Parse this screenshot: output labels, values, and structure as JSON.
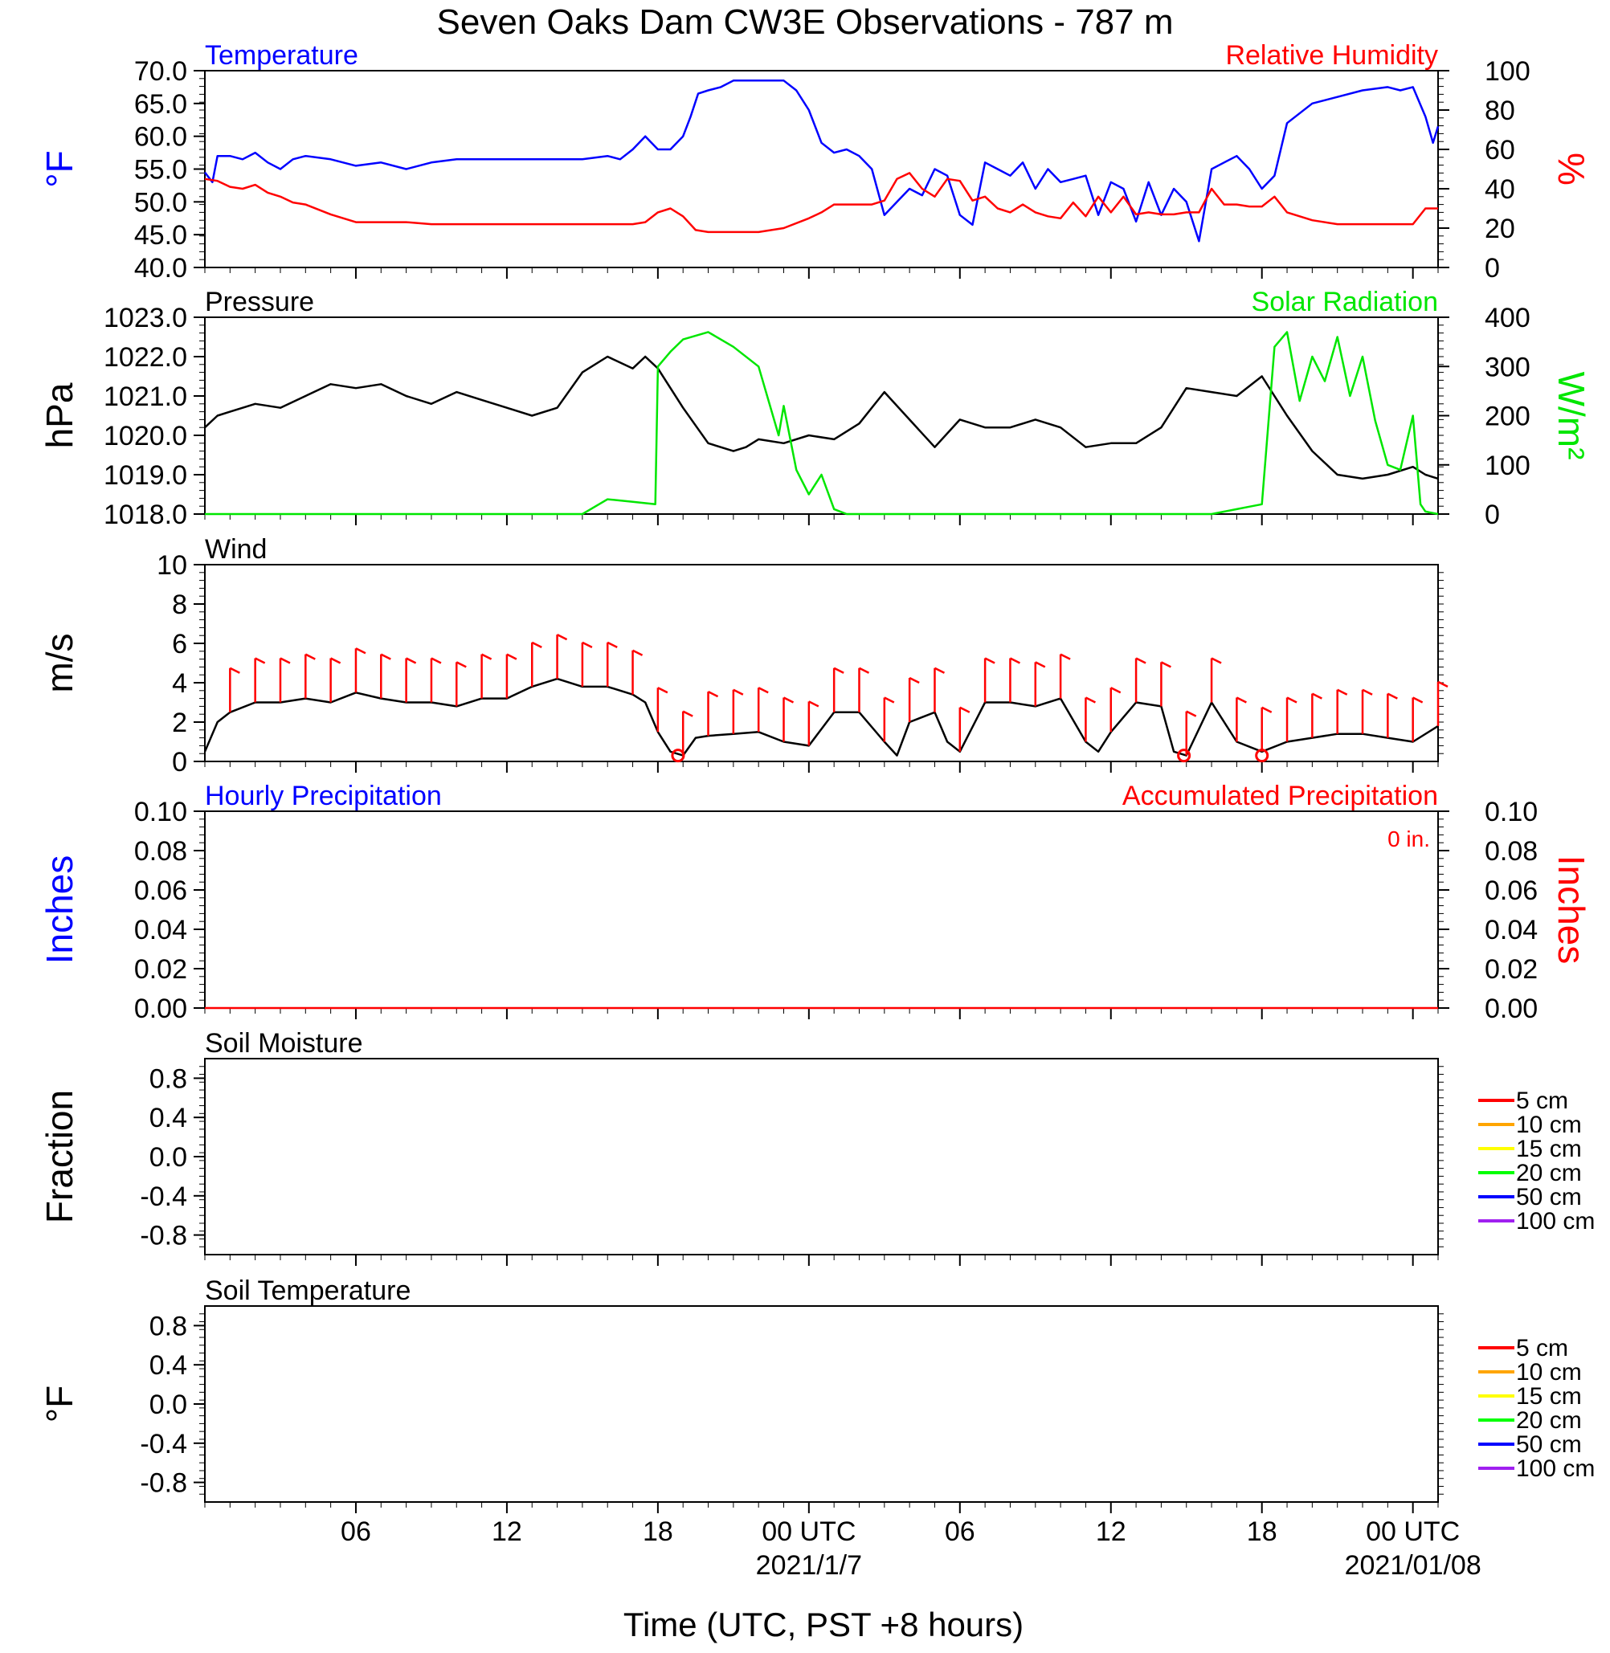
{
  "title": "Seven Oaks Dam CW3E Observations - 787 m",
  "xlabel": "Time (UTC, PST +8 hours)",
  "x_ticks": [
    {
      "hours": 6,
      "label": "06",
      "sub": ""
    },
    {
      "hours": 12,
      "label": "12",
      "sub": ""
    },
    {
      "hours": 18,
      "label": "18",
      "sub": ""
    },
    {
      "hours": 24,
      "label": "00 UTC",
      "sub": "2021/1/7"
    },
    {
      "hours": 30,
      "label": "06",
      "sub": ""
    },
    {
      "hours": 36,
      "label": "12",
      "sub": ""
    },
    {
      "hours": 42,
      "label": "18",
      "sub": ""
    },
    {
      "hours": 48,
      "label": "00 UTC",
      "sub": "2021/01/08"
    }
  ],
  "colors": {
    "blue": "#0000ff",
    "red": "#ff0000",
    "green": "#00e600",
    "black": "#000000"
  },
  "chart_data": [
    {
      "type": "line",
      "panel": "temperature-humidity",
      "title_left": "Temperature",
      "title_right": "Relative Humidity",
      "ylabel_left": "°F",
      "ylabel_right": "%",
      "ylim_left": [
        40,
        70
      ],
      "ylim_right": [
        0,
        100
      ],
      "yticks_left": [
        "40.0",
        "45.0",
        "50.0",
        "55.0",
        "60.0",
        "65.0",
        "70.0"
      ],
      "yticks_right": [
        "0",
        "20",
        "40",
        "60",
        "80",
        "100"
      ],
      "series": [
        {
          "name": "Temperature",
          "axis": "left",
          "color": "#0000ff",
          "x": [
            0,
            0.3,
            0.5,
            1,
            1.5,
            2,
            2.5,
            3,
            3.5,
            4,
            5,
            6,
            7,
            8,
            9,
            10,
            11,
            12,
            13,
            14,
            15,
            16,
            16.5,
            17,
            17.5,
            18,
            18.5,
            19,
            19.3,
            19.6,
            20,
            20.5,
            21,
            22,
            23,
            23.5,
            24,
            24.5,
            25,
            25.5,
            26,
            26.5,
            27,
            27.5,
            28,
            28.5,
            29,
            29.5,
            30,
            30.5,
            31,
            31.5,
            32,
            32.5,
            33,
            33.5,
            34,
            34.5,
            35,
            35.5,
            36,
            36.5,
            37,
            37.5,
            38,
            38.5,
            39,
            39.5,
            40,
            40.5,
            41,
            41.5,
            42,
            42.5,
            43,
            44,
            45,
            46,
            47,
            47.5,
            48,
            48.5,
            48.8,
            49
          ],
          "y": [
            54.5,
            53,
            57,
            57,
            56.5,
            57.5,
            56,
            55,
            56.5,
            57,
            56.5,
            55.5,
            56,
            55,
            56,
            56.5,
            56.5,
            56.5,
            56.5,
            56.5,
            56.5,
            57,
            56.5,
            58,
            60,
            58,
            58,
            60,
            63,
            66.5,
            67,
            67.5,
            68.5,
            68.5,
            68.5,
            67,
            64,
            59,
            57.5,
            58,
            57,
            55,
            48,
            50,
            52,
            51,
            55,
            54,
            48,
            46.5,
            56,
            55,
            54,
            56,
            52,
            55,
            53,
            53.5,
            54,
            48,
            53,
            52,
            47,
            53,
            48,
            52,
            50,
            44,
            55,
            56,
            57,
            55,
            52,
            54,
            62,
            65,
            66,
            67,
            67.5,
            67,
            67.5,
            63,
            59,
            61.5
          ]
        },
        {
          "name": "Relative Humidity",
          "axis": "right",
          "color": "#ff0000",
          "x": [
            0,
            0.5,
            1,
            1.5,
            2,
            2.5,
            3,
            3.5,
            4,
            5,
            6,
            7,
            8,
            9,
            10,
            11,
            12,
            13,
            14,
            15,
            16,
            17,
            17.5,
            18,
            18.5,
            19,
            19.5,
            20,
            21,
            22,
            23,
            24,
            24.5,
            25,
            26,
            26.5,
            27,
            27.5,
            28,
            28.5,
            29,
            29.5,
            30,
            30.5,
            31,
            31.5,
            32,
            32.5,
            33,
            33.5,
            34,
            34.5,
            35,
            35.5,
            36,
            36.5,
            37,
            37.5,
            38,
            38.5,
            39,
            39.5,
            40,
            40.5,
            41,
            41.5,
            42,
            42.5,
            43,
            44,
            45,
            46,
            47,
            48,
            48.5,
            49
          ],
          "y": [
            45,
            44,
            41,
            40,
            42,
            38,
            36,
            33,
            32,
            27,
            23,
            23,
            23,
            22,
            22,
            22,
            22,
            22,
            22,
            22,
            22,
            22,
            23,
            28,
            30,
            26,
            19,
            18,
            18,
            18,
            20,
            25,
            28,
            32,
            32,
            32,
            34,
            45,
            48,
            40,
            36,
            45,
            44,
            34,
            36,
            30,
            28,
            32,
            28,
            26,
            25,
            33,
            26,
            36,
            28,
            36,
            27,
            28,
            27,
            27,
            28,
            28,
            40,
            32,
            32,
            31,
            31,
            36,
            28,
            24,
            22,
            22,
            22,
            22,
            30,
            30
          ]
        }
      ]
    },
    {
      "type": "line",
      "panel": "pressure-solar",
      "title_left": "Pressure",
      "title_right": "Solar Radiation",
      "ylabel_left": "hPa",
      "ylabel_right": "W/m²",
      "ylim_left": [
        1018,
        1023
      ],
      "ylim_right": [
        0,
        400
      ],
      "yticks_left": [
        "1018.0",
        "1019.0",
        "1020.0",
        "1021.0",
        "1022.0",
        "1023.0"
      ],
      "yticks_right": [
        "0",
        "100",
        "200",
        "300",
        "400"
      ],
      "series": [
        {
          "name": "Pressure",
          "axis": "left",
          "color": "#000000",
          "x": [
            0,
            0.5,
            1,
            2,
            3,
            4,
            5,
            6,
            7,
            8,
            9,
            10,
            11,
            12,
            13,
            14,
            15,
            16,
            17,
            17.5,
            18,
            19,
            20,
            21,
            21.5,
            22,
            23,
            24,
            25,
            26,
            27,
            28,
            29,
            30,
            31,
            32,
            33,
            34,
            35,
            36,
            37,
            38,
            39,
            40,
            41,
            42,
            43,
            44,
            45,
            46,
            47,
            48,
            48.5,
            49
          ],
          "y": [
            1020.2,
            1020.5,
            1020.6,
            1020.8,
            1020.7,
            1021.0,
            1021.3,
            1021.2,
            1021.3,
            1021.0,
            1020.8,
            1021.1,
            1020.9,
            1020.7,
            1020.5,
            1020.7,
            1021.6,
            1022.0,
            1021.7,
            1022.0,
            1021.7,
            1020.7,
            1019.8,
            1019.6,
            1019.7,
            1019.9,
            1019.8,
            1020.0,
            1019.9,
            1020.3,
            1021.1,
            1020.4,
            1019.7,
            1020.4,
            1020.2,
            1020.2,
            1020.4,
            1020.2,
            1019.7,
            1019.8,
            1019.8,
            1020.2,
            1021.2,
            1021.1,
            1021.0,
            1021.5,
            1020.5,
            1019.6,
            1019.0,
            1018.9,
            1019.0,
            1019.2,
            1019.0,
            1018.9
          ]
        },
        {
          "name": "Solar Radiation",
          "axis": "right",
          "color": "#00e600",
          "x": [
            0,
            14,
            15,
            16,
            17,
            17.9,
            18,
            18.5,
            19,
            20,
            21,
            22,
            22.8,
            23,
            23.5,
            24,
            24.5,
            25,
            25.5,
            26,
            27,
            40,
            41,
            41.5,
            42,
            42.5,
            43,
            43.5,
            44,
            44.5,
            45,
            45.5,
            46,
            46.5,
            47,
            47.5,
            48,
            48.3,
            48.5,
            49
          ],
          "y": [
            0,
            0,
            0,
            30,
            25,
            20,
            300,
            330,
            355,
            370,
            340,
            300,
            160,
            220,
            90,
            40,
            80,
            10,
            0,
            0,
            0,
            0,
            10,
            15,
            20,
            340,
            370,
            230,
            320,
            270,
            360,
            240,
            320,
            190,
            100,
            90,
            200,
            20,
            5,
            0
          ]
        }
      ]
    },
    {
      "type": "line",
      "panel": "wind",
      "title_left": "Wind",
      "ylabel_left": "m/s",
      "ylim_left": [
        0,
        10
      ],
      "yticks_left": [
        "0",
        "2",
        "4",
        "6",
        "8",
        "10"
      ],
      "calm_hours": [
        18.8,
        38.9,
        42
      ],
      "barb_hours": [
        1,
        2,
        3,
        4,
        5,
        6,
        7,
        8,
        9,
        10,
        11,
        12,
        13,
        14,
        15,
        16,
        17,
        18,
        19,
        20,
        21,
        22,
        23,
        24,
        25,
        26,
        27,
        28,
        29,
        30,
        31,
        32,
        33,
        34,
        35,
        36,
        37,
        38,
        39,
        40,
        41,
        42,
        43,
        44,
        45,
        46,
        47,
        48,
        49
      ],
      "series": [
        {
          "name": "Wind Speed",
          "axis": "left",
          "color": "#000000",
          "x": [
            0,
            0.5,
            1,
            2,
            3,
            4,
            5,
            6,
            7,
            8,
            9,
            10,
            11,
            12,
            13,
            14,
            15,
            16,
            17,
            17.5,
            18,
            18.5,
            19,
            19.5,
            20,
            21,
            22,
            23,
            24,
            25,
            26,
            27,
            27.5,
            28,
            29,
            29.5,
            30,
            31,
            32,
            33,
            34,
            35,
            35.5,
            36,
            37,
            38,
            38.5,
            39,
            40,
            41,
            42,
            43,
            44,
            45,
            46,
            47,
            48,
            49
          ],
          "y": [
            0.5,
            2.0,
            2.5,
            3.0,
            3.0,
            3.2,
            3.0,
            3.5,
            3.2,
            3.0,
            3.0,
            2.8,
            3.2,
            3.2,
            3.8,
            4.2,
            3.8,
            3.8,
            3.4,
            3.0,
            1.5,
            0.5,
            0.3,
            1.2,
            1.3,
            1.4,
            1.5,
            1.0,
            0.8,
            2.5,
            2.5,
            1.0,
            0.3,
            2.0,
            2.5,
            1.0,
            0.5,
            3.0,
            3.0,
            2.8,
            3.2,
            1.0,
            0.5,
            1.5,
            3.0,
            2.8,
            0.5,
            0.3,
            3.0,
            1.0,
            0.5,
            1.0,
            1.2,
            1.4,
            1.4,
            1.2,
            1.0,
            1.8
          ]
        }
      ]
    },
    {
      "type": "line",
      "panel": "precipitation",
      "title_left": "Hourly Precipitation",
      "title_right": "Accumulated Precipitation",
      "annotation": "0 in.",
      "ylabel_left": "Inches",
      "ylabel_right": "Inches",
      "ylim_left": [
        0,
        0.1
      ],
      "ylim_right": [
        0,
        0.1
      ],
      "yticks_left": [
        "0.00",
        "0.02",
        "0.04",
        "0.06",
        "0.08",
        "0.10"
      ],
      "yticks_right": [
        "0.00",
        "0.02",
        "0.04",
        "0.06",
        "0.08",
        "0.10"
      ],
      "series": [
        {
          "name": "Accumulated Precipitation",
          "axis": "right",
          "color": "#ff0000",
          "x": [
            0,
            49
          ],
          "y": [
            0,
            0
          ]
        }
      ]
    },
    {
      "type": "line",
      "panel": "soil-moisture",
      "title_left": "Soil Moisture",
      "ylabel_left": "Fraction",
      "ylim_left": [
        -1,
        1
      ],
      "yticks_left": [
        "-0.8",
        "-0.4",
        "0.0",
        "0.4",
        "0.8"
      ],
      "legend": [
        {
          "label": "5 cm",
          "color": "#ff0000"
        },
        {
          "label": "10 cm",
          "color": "#ffa500"
        },
        {
          "label": "15 cm",
          "color": "#ffff00"
        },
        {
          "label": "20 cm",
          "color": "#00ff00"
        },
        {
          "label": "50 cm",
          "color": "#0000ff"
        },
        {
          "label": "100 cm",
          "color": "#a020f0"
        }
      ],
      "series": []
    },
    {
      "type": "line",
      "panel": "soil-temperature",
      "title_left": "Soil Temperature",
      "ylabel_left": "°F",
      "ylim_left": [
        -1,
        1
      ],
      "yticks_left": [
        "-0.8",
        "-0.4",
        "0.0",
        "0.4",
        "0.8"
      ],
      "legend": [
        {
          "label": "5 cm",
          "color": "#ff0000"
        },
        {
          "label": "10 cm",
          "color": "#ffa500"
        },
        {
          "label": "15 cm",
          "color": "#ffff00"
        },
        {
          "label": "20 cm",
          "color": "#00ff00"
        },
        {
          "label": "50 cm",
          "color": "#0000ff"
        },
        {
          "label": "100 cm",
          "color": "#a020f0"
        }
      ],
      "series": []
    }
  ]
}
